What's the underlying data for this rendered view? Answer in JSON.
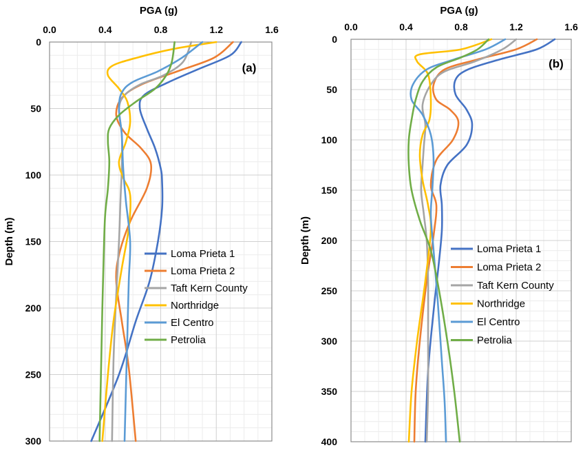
{
  "chart_data": [
    {
      "type": "line",
      "panel_label": "(a)",
      "xlabel": "PGA (g)",
      "ylabel": "Depth (m)",
      "xlim": [
        0,
        1.6
      ],
      "ylim": [
        0,
        300
      ],
      "x_ticks": [
        "0.0",
        "0.4",
        "0.8",
        "1.2",
        "1.6"
      ],
      "y_ticks": [
        "0",
        "50",
        "100",
        "150",
        "200",
        "250",
        "300"
      ],
      "x_axis_position": "top",
      "y_inverted": true,
      "grid": true,
      "legend_position": "center-right",
      "series": [
        {
          "name": "Loma Prieta 1",
          "color": "#4472C4",
          "points": [
            [
              1.38,
              0
            ],
            [
              1.3,
              10
            ],
            [
              1.08,
              20
            ],
            [
              0.86,
              30
            ],
            [
              0.68,
              40
            ],
            [
              0.65,
              50
            ],
            [
              0.7,
              65
            ],
            [
              0.76,
              80
            ],
            [
              0.8,
              95
            ],
            [
              0.81,
              105
            ],
            [
              0.81,
              125
            ],
            [
              0.78,
              150
            ],
            [
              0.72,
              180
            ],
            [
              0.62,
              210
            ],
            [
              0.5,
              250
            ],
            [
              0.3,
              300
            ]
          ]
        },
        {
          "name": "Loma Prieta 2",
          "color": "#ED7D31",
          "points": [
            [
              1.32,
              0
            ],
            [
              1.18,
              12
            ],
            [
              0.92,
              22
            ],
            [
              0.66,
              32
            ],
            [
              0.52,
              42
            ],
            [
              0.48,
              55
            ],
            [
              0.54,
              68
            ],
            [
              0.66,
              80
            ],
            [
              0.73,
              92
            ],
            [
              0.7,
              110
            ],
            [
              0.58,
              135
            ],
            [
              0.5,
              160
            ],
            [
              0.48,
              180
            ],
            [
              0.52,
              210
            ],
            [
              0.57,
              245
            ],
            [
              0.62,
              300
            ]
          ]
        },
        {
          "name": "Taft Kern County",
          "color": "#A5A5A5",
          "points": [
            [
              1.02,
              0
            ],
            [
              0.96,
              15
            ],
            [
              0.82,
              25
            ],
            [
              0.65,
              32
            ],
            [
              0.54,
              40
            ],
            [
              0.5,
              50
            ],
            [
              0.52,
              70
            ],
            [
              0.52,
              95
            ],
            [
              0.51,
              120
            ],
            [
              0.5,
              150
            ],
            [
              0.48,
              190
            ],
            [
              0.46,
              240
            ],
            [
              0.45,
              300
            ]
          ]
        },
        {
          "name": "Northridge",
          "color": "#FFC000",
          "points": [
            [
              1.2,
              0
            ],
            [
              0.9,
              5
            ],
            [
              0.62,
              12
            ],
            [
              0.45,
              18
            ],
            [
              0.42,
              25
            ],
            [
              0.5,
              35
            ],
            [
              0.56,
              45
            ],
            [
              0.58,
              60
            ],
            [
              0.55,
              75
            ],
            [
              0.5,
              90
            ],
            [
              0.53,
              102
            ],
            [
              0.58,
              115
            ],
            [
              0.57,
              140
            ],
            [
              0.52,
              170
            ],
            [
              0.46,
              210
            ],
            [
              0.42,
              250
            ],
            [
              0.38,
              300
            ]
          ]
        },
        {
          "name": "El Centro",
          "color": "#5B9BD5",
          "points": [
            [
              1.1,
              0
            ],
            [
              0.95,
              12
            ],
            [
              0.78,
              22
            ],
            [
              0.6,
              30
            ],
            [
              0.52,
              38
            ],
            [
              0.5,
              50
            ],
            [
              0.52,
              70
            ],
            [
              0.53,
              95
            ],
            [
              0.55,
              120
            ],
            [
              0.58,
              150
            ],
            [
              0.57,
              180
            ],
            [
              0.56,
              220
            ],
            [
              0.55,
              260
            ],
            [
              0.54,
              300
            ]
          ]
        },
        {
          "name": "Petrolia",
          "color": "#70AD47",
          "points": [
            [
              0.9,
              0
            ],
            [
              0.88,
              15
            ],
            [
              0.84,
              25
            ],
            [
              0.76,
              35
            ],
            [
              0.62,
              45
            ],
            [
              0.5,
              55
            ],
            [
              0.43,
              65
            ],
            [
              0.42,
              75
            ],
            [
              0.43,
              90
            ],
            [
              0.42,
              110
            ],
            [
              0.4,
              130
            ],
            [
              0.39,
              160
            ],
            [
              0.38,
              200
            ],
            [
              0.37,
              250
            ],
            [
              0.36,
              300
            ]
          ]
        }
      ]
    },
    {
      "type": "line",
      "panel_label": "(b)",
      "xlabel": "PGA (g)",
      "ylabel": "Depth (m)",
      "xlim": [
        0,
        1.6
      ],
      "ylim": [
        0,
        400
      ],
      "x_ticks": [
        "0.0",
        "0.4",
        "0.8",
        "1.2",
        "1.6"
      ],
      "y_ticks": [
        "0",
        "50",
        "100",
        "150",
        "200",
        "250",
        "300",
        "350",
        "400"
      ],
      "x_axis_position": "top",
      "y_inverted": true,
      "grid": true,
      "legend_position": "center-right",
      "series": [
        {
          "name": "Loma Prieta 1",
          "color": "#4472C4",
          "points": [
            [
              1.48,
              0
            ],
            [
              1.35,
              10
            ],
            [
              1.08,
              20
            ],
            [
              0.85,
              30
            ],
            [
              0.76,
              40
            ],
            [
              0.76,
              55
            ],
            [
              0.84,
              70
            ],
            [
              0.88,
              85
            ],
            [
              0.84,
              105
            ],
            [
              0.7,
              125
            ],
            [
              0.65,
              145
            ],
            [
              0.66,
              165
            ],
            [
              0.66,
              190
            ],
            [
              0.64,
              220
            ],
            [
              0.6,
              270
            ],
            [
              0.56,
              330
            ],
            [
              0.54,
              400
            ]
          ]
        },
        {
          "name": "Loma Prieta 2",
          "color": "#ED7D31",
          "points": [
            [
              1.35,
              0
            ],
            [
              1.2,
              10
            ],
            [
              0.92,
              20
            ],
            [
              0.68,
              30
            ],
            [
              0.6,
              45
            ],
            [
              0.62,
              60
            ],
            [
              0.72,
              70
            ],
            [
              0.78,
              82
            ],
            [
              0.74,
              100
            ],
            [
              0.62,
              120
            ],
            [
              0.58,
              145
            ],
            [
              0.62,
              165
            ],
            [
              0.6,
              195
            ],
            [
              0.55,
              240
            ],
            [
              0.5,
              300
            ],
            [
              0.47,
              350
            ],
            [
              0.46,
              400
            ]
          ]
        },
        {
          "name": "Taft Kern County",
          "color": "#A5A5A5",
          "points": [
            [
              1.2,
              0
            ],
            [
              1.1,
              10
            ],
            [
              0.9,
              22
            ],
            [
              0.68,
              32
            ],
            [
              0.58,
              45
            ],
            [
              0.52,
              65
            ],
            [
              0.54,
              85
            ],
            [
              0.53,
              105
            ],
            [
              0.52,
              125
            ],
            [
              0.51,
              150
            ],
            [
              0.53,
              175
            ],
            [
              0.55,
              200
            ],
            [
              0.56,
              240
            ],
            [
              0.56,
              300
            ],
            [
              0.56,
              350
            ],
            [
              0.55,
              400
            ]
          ]
        },
        {
          "name": "Northridge",
          "color": "#FFC000",
          "points": [
            [
              1.02,
              0
            ],
            [
              0.8,
              10
            ],
            [
              0.5,
              15
            ],
            [
              0.48,
              22
            ],
            [
              0.56,
              35
            ],
            [
              0.58,
              60
            ],
            [
              0.57,
              80
            ],
            [
              0.52,
              95
            ],
            [
              0.5,
              115
            ],
            [
              0.52,
              140
            ],
            [
              0.56,
              165
            ],
            [
              0.58,
              190
            ],
            [
              0.54,
              240
            ],
            [
              0.48,
              300
            ],
            [
              0.44,
              350
            ],
            [
              0.42,
              400
            ]
          ]
        },
        {
          "name": "El Centro",
          "color": "#5B9BD5",
          "points": [
            [
              1.12,
              0
            ],
            [
              0.98,
              10
            ],
            [
              0.75,
              20
            ],
            [
              0.55,
              30
            ],
            [
              0.45,
              45
            ],
            [
              0.44,
              60
            ],
            [
              0.52,
              75
            ],
            [
              0.58,
              95
            ],
            [
              0.6,
              120
            ],
            [
              0.59,
              150
            ],
            [
              0.58,
              175
            ],
            [
              0.6,
              210
            ],
            [
              0.63,
              260
            ],
            [
              0.66,
              320
            ],
            [
              0.68,
              360
            ],
            [
              0.69,
              400
            ]
          ]
        },
        {
          "name": "Petrolia",
          "color": "#70AD47",
          "points": [
            [
              1.0,
              0
            ],
            [
              0.92,
              10
            ],
            [
              0.8,
              18
            ],
            [
              0.62,
              28
            ],
            [
              0.52,
              42
            ],
            [
              0.47,
              60
            ],
            [
              0.44,
              80
            ],
            [
              0.42,
              100
            ],
            [
              0.42,
              125
            ],
            [
              0.44,
              150
            ],
            [
              0.5,
              180
            ],
            [
              0.58,
              210
            ],
            [
              0.64,
              250
            ],
            [
              0.7,
              300
            ],
            [
              0.75,
              350
            ],
            [
              0.79,
              400
            ]
          ]
        }
      ]
    }
  ]
}
